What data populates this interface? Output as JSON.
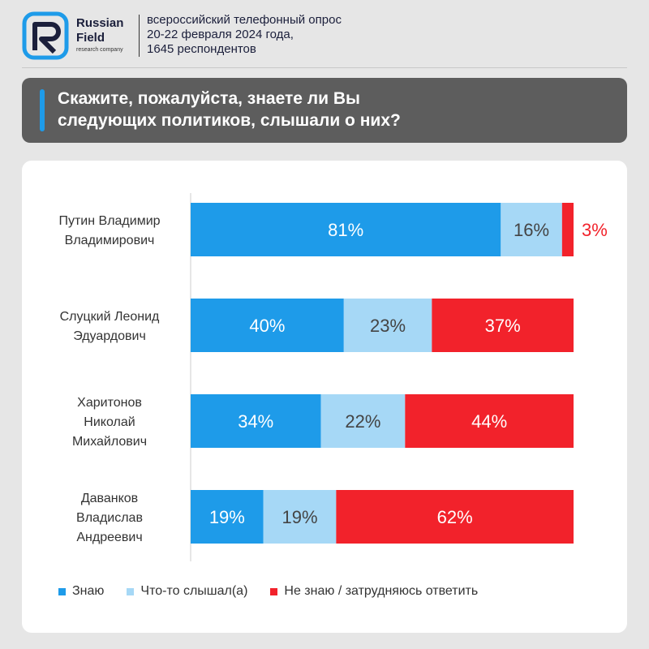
{
  "header": {
    "brand_line1": "Russian",
    "brand_line2": "Field",
    "brand_sub": "research company",
    "survey_lines": [
      "всероссийский телефонный опрос",
      "20-22 февраля 2024 года,",
      "1645 респондентов"
    ]
  },
  "question": {
    "lines": [
      "Скажите, пожалуйста, знаете ли Вы",
      "следующих политиков, слышали о них?"
    ]
  },
  "colors": {
    "know": "#1e9be9",
    "heard": "#a6d8f6",
    "dont_know": "#f2222b",
    "accent": "#1e9be9",
    "question_bg": "#5d5d5d"
  },
  "chart_data": {
    "type": "bar",
    "orientation": "horizontal",
    "stacked": true,
    "categories": [
      [
        "Путин Владимир",
        "Владимирович"
      ],
      [
        "Слуцкий Леонид",
        "Эдуардович"
      ],
      [
        "Харитонов",
        "Николай",
        "Михайлович"
      ],
      [
        "Даванков",
        "Владислав",
        "Андреевич"
      ]
    ],
    "series": [
      {
        "name": "Знаю",
        "values": [
          81,
          40,
          34,
          19
        ],
        "labels": [
          "81%",
          "40%",
          "34%",
          "19%"
        ]
      },
      {
        "name": "Что-то слышал(а)",
        "values": [
          16,
          23,
          22,
          19
        ],
        "labels": [
          "16%",
          "23%",
          "22%",
          "19%"
        ]
      },
      {
        "name": "Не знаю / затрудняюсь ответить",
        "values": [
          3,
          37,
          44,
          62
        ],
        "labels": [
          "3%",
          "37%",
          "44%",
          "62%"
        ]
      }
    ],
    "xlim": [
      0,
      100
    ],
    "legend_position": "bottom"
  }
}
